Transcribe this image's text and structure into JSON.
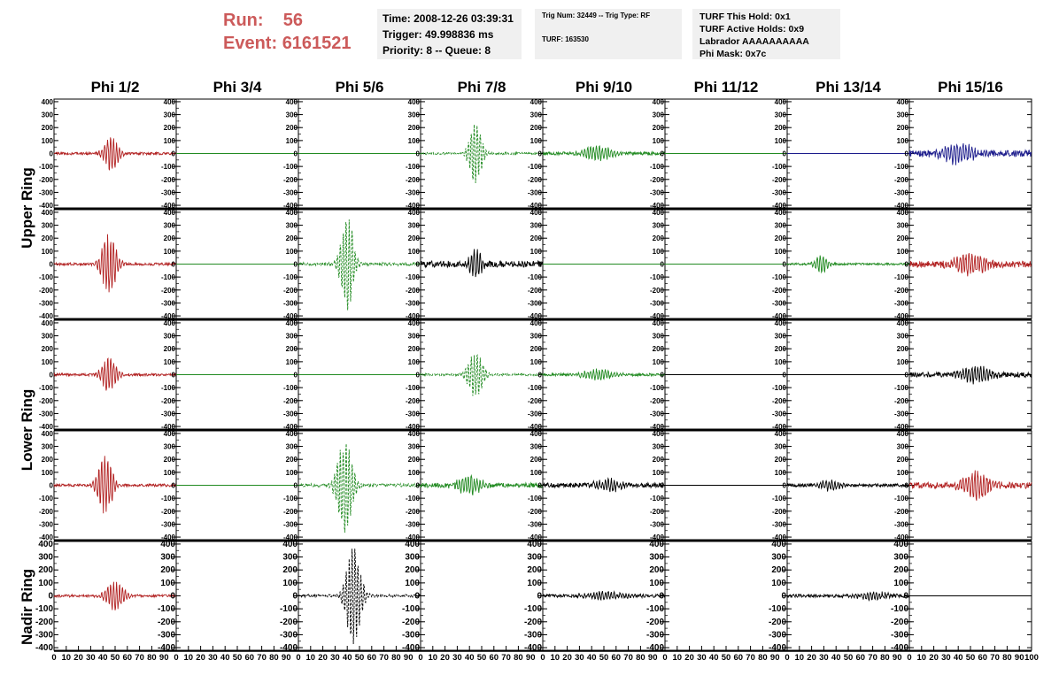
{
  "header": {
    "run_label": "Run:",
    "run_value": "56",
    "event_label": "Event:",
    "event_value": "6161521",
    "colors": {
      "run_event": "#cc5a5a"
    }
  },
  "info_time": {
    "line1": "Time: 2008-12-26 03:39:31",
    "line2": "Trigger: 49.998836 ms",
    "line3": "Priority: 8 -- Queue: 8"
  },
  "info_trig": {
    "line1": "Trig Num: 32449 -- Trig Type: RF",
    "line2": "TURF: 163530"
  },
  "info_turf": {
    "line1": "TURF This Hold: 0x1",
    "line2": "TURF Active Holds: 0x9",
    "line3": "Labrador AAAAAAAAAA",
    "line4": "Phi Mask: 0x7c"
  },
  "ring_labels": [
    "Upper Ring",
    "Lower Ring",
    "Nadir Ring"
  ],
  "chart_data": {
    "type": "line",
    "columns": [
      "Phi 1/2",
      "Phi 3/4",
      "Phi 5/6",
      "Phi 7/8",
      "Phi 9/10",
      "Phi 11/12",
      "Phi 13/14",
      "Phi 15/16"
    ],
    "ylim": [
      -420,
      420
    ],
    "yticks": [
      -400,
      -300,
      -200,
      -100,
      0,
      100,
      200,
      300,
      400
    ],
    "xlim": [
      0,
      100
    ],
    "xticks": [
      0,
      10,
      20,
      30,
      40,
      50,
      60,
      70,
      80,
      90,
      100
    ],
    "x_tick_labels": [
      "0",
      "10",
      "20",
      "30",
      "40",
      "50",
      "60",
      "70",
      "80",
      "90",
      "100"
    ],
    "series_colors": {
      "red": "#b22222",
      "green": "#228b22",
      "black": "#000000",
      "blue": "#1c1c8c"
    },
    "panels": [
      [
        {
          "c": "red",
          "d": false,
          "a": 130,
          "p": 47,
          "w": 7,
          "n": 10
        },
        {
          "c": "green",
          "d": false,
          "a": 0,
          "p": 50,
          "w": 10,
          "n": 0
        },
        {
          "c": "green",
          "d": false,
          "a": 0,
          "p": 50,
          "w": 10,
          "n": 0
        },
        {
          "c": "green",
          "d": true,
          "a": 230,
          "p": 45,
          "w": 6,
          "n": 8
        },
        {
          "c": "green",
          "d": false,
          "a": 60,
          "p": 45,
          "w": 12,
          "n": 12
        },
        {
          "c": "green",
          "d": false,
          "a": 0,
          "p": 50,
          "w": 10,
          "n": 0
        },
        {
          "c": "blue",
          "d": false,
          "a": 0,
          "p": 50,
          "w": 10,
          "n": 0
        },
        {
          "c": "blue",
          "d": false,
          "a": 80,
          "p": 40,
          "w": 14,
          "n": 25
        }
      ],
      [
        {
          "c": "red",
          "d": false,
          "a": 230,
          "p": 45,
          "w": 7,
          "n": 10
        },
        {
          "c": "green",
          "d": false,
          "a": 0,
          "p": 50,
          "w": 10,
          "n": 0
        },
        {
          "c": "green",
          "d": true,
          "a": 380,
          "p": 40,
          "w": 6,
          "n": 12
        },
        {
          "c": "black",
          "d": false,
          "a": 130,
          "p": 45,
          "w": 5,
          "n": 25
        },
        {
          "c": "green",
          "d": false,
          "a": 0,
          "p": 50,
          "w": 10,
          "n": 0
        },
        {
          "c": "green",
          "d": false,
          "a": 0,
          "p": 50,
          "w": 10,
          "n": 0
        },
        {
          "c": "green",
          "d": false,
          "a": 70,
          "p": 28,
          "w": 6,
          "n": 8
        },
        {
          "c": "red",
          "d": false,
          "a": 80,
          "p": 50,
          "w": 15,
          "n": 25
        }
      ],
      [
        {
          "c": "red",
          "d": false,
          "a": 130,
          "p": 45,
          "w": 7,
          "n": 10
        },
        {
          "c": "green",
          "d": false,
          "a": 0,
          "p": 50,
          "w": 10,
          "n": 0
        },
        {
          "c": "green",
          "d": false,
          "a": 0,
          "p": 50,
          "w": 10,
          "n": 0
        },
        {
          "c": "green",
          "d": true,
          "a": 180,
          "p": 45,
          "w": 7,
          "n": 8
        },
        {
          "c": "green",
          "d": false,
          "a": 40,
          "p": 45,
          "w": 15,
          "n": 10
        },
        {
          "c": "black",
          "d": false,
          "a": 0,
          "p": 50,
          "w": 10,
          "n": 0
        },
        {
          "c": "black",
          "d": false,
          "a": 0,
          "p": 50,
          "w": 10,
          "n": 0
        },
        {
          "c": "black",
          "d": false,
          "a": 60,
          "p": 55,
          "w": 14,
          "n": 20
        }
      ],
      [
        {
          "c": "red",
          "d": false,
          "a": 220,
          "p": 42,
          "w": 7,
          "n": 10
        },
        {
          "c": "green",
          "d": false,
          "a": 0,
          "p": 50,
          "w": 10,
          "n": 0
        },
        {
          "c": "green",
          "d": true,
          "a": 360,
          "p": 38,
          "w": 7,
          "n": 12
        },
        {
          "c": "green",
          "d": false,
          "a": 70,
          "p": 40,
          "w": 12,
          "n": 18
        },
        {
          "c": "black",
          "d": false,
          "a": 40,
          "p": 55,
          "w": 14,
          "n": 18
        },
        {
          "c": "black",
          "d": false,
          "a": 0,
          "p": 50,
          "w": 10,
          "n": 0
        },
        {
          "c": "black",
          "d": false,
          "a": 40,
          "p": 35,
          "w": 10,
          "n": 12
        },
        {
          "c": "red",
          "d": false,
          "a": 100,
          "p": 55,
          "w": 12,
          "n": 25
        }
      ],
      [
        {
          "c": "red",
          "d": false,
          "a": 120,
          "p": 50,
          "w": 8,
          "n": 10
        },
        null,
        {
          "c": "black",
          "d": true,
          "a": 380,
          "p": 45,
          "w": 7,
          "n": 10
        },
        null,
        {
          "c": "black",
          "d": false,
          "a": 25,
          "p": 50,
          "w": 20,
          "n": 12
        },
        null,
        {
          "c": "black",
          "d": false,
          "a": 30,
          "p": 70,
          "w": 15,
          "n": 12
        },
        {
          "c": "black",
          "d": false,
          "a": 0,
          "p": 50,
          "w": 10,
          "n": 0
        }
      ]
    ]
  }
}
